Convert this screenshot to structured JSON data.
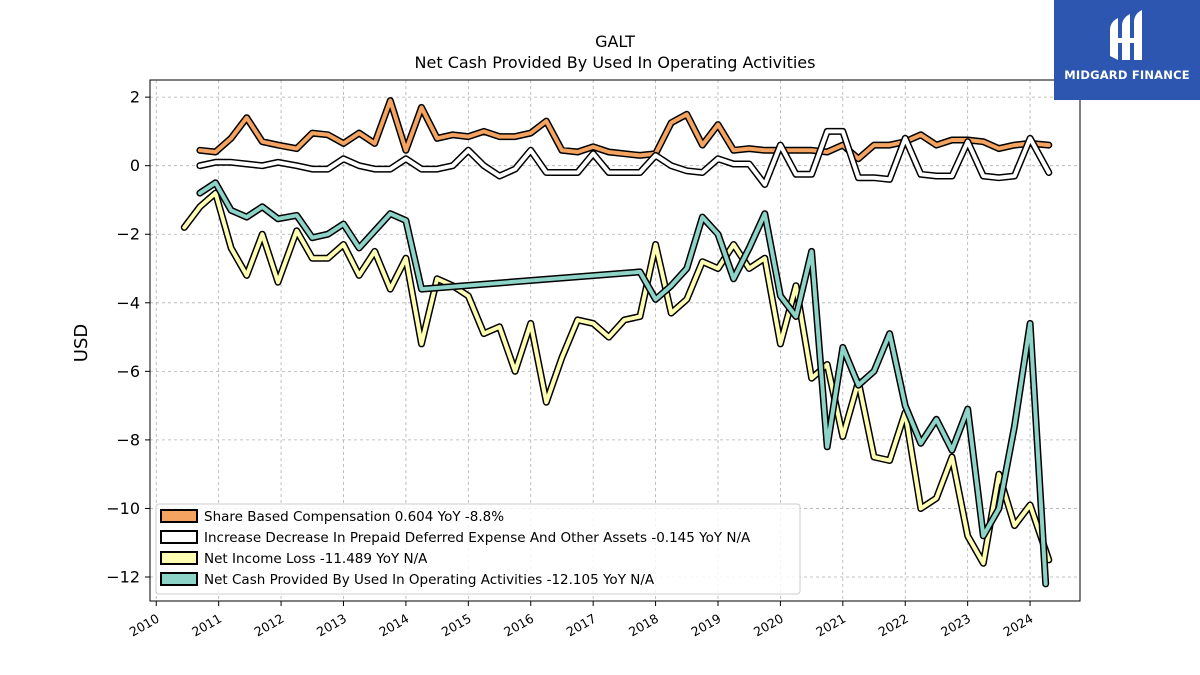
{
  "chart_data": {
    "type": "line",
    "title": "GALT",
    "subtitle": "Net Cash Provided By Used In Operating Activities",
    "xlabel": "",
    "ylabel": "USD",
    "xlim": [
      2009.9,
      2024.8
    ],
    "ylim": [
      -12.7,
      2.5
    ],
    "yticks": [
      2,
      0,
      -2,
      -4,
      -6,
      -8,
      -10,
      -12
    ],
    "ytick_labels": [
      "2",
      "0",
      "−2",
      "−4",
      "−6",
      "−8",
      "−10",
      "−12"
    ],
    "xticks": [
      2010,
      2011,
      2012,
      2013,
      2014,
      2015,
      2016,
      2017,
      2018,
      2019,
      2020,
      2021,
      2022,
      2023,
      2024
    ],
    "xtick_labels": [
      "2010",
      "2011",
      "2012",
      "2013",
      "2014",
      "2015",
      "2016",
      "2017",
      "2018",
      "2019",
      "2020",
      "2021",
      "2022",
      "2023",
      "2024"
    ],
    "grid": true,
    "legend_position": "lower-left",
    "series": [
      {
        "name": "Share Based Compensation",
        "legend": "Share Based Compensation  0.604 YoY -8.8%",
        "color": "#f4a460",
        "points": [
          [
            2010.7,
            0.45
          ],
          [
            2010.95,
            0.4
          ],
          [
            2011.2,
            0.8
          ],
          [
            2011.45,
            1.4
          ],
          [
            2011.7,
            0.7
          ],
          [
            2011.95,
            0.6
          ],
          [
            2012.25,
            0.5
          ],
          [
            2012.5,
            0.95
          ],
          [
            2012.75,
            0.9
          ],
          [
            2013.0,
            0.65
          ],
          [
            2013.25,
            0.95
          ],
          [
            2013.5,
            0.65
          ],
          [
            2013.75,
            1.9
          ],
          [
            2014.0,
            0.45
          ],
          [
            2014.25,
            1.7
          ],
          [
            2014.5,
            0.8
          ],
          [
            2014.75,
            0.9
          ],
          [
            2015.0,
            0.85
          ],
          [
            2015.25,
            1.0
          ],
          [
            2015.5,
            0.85
          ],
          [
            2015.75,
            0.85
          ],
          [
            2016.0,
            0.95
          ],
          [
            2016.25,
            1.3
          ],
          [
            2016.5,
            0.45
          ],
          [
            2016.75,
            0.4
          ],
          [
            2017.0,
            0.55
          ],
          [
            2017.25,
            0.4
          ],
          [
            2017.5,
            0.35
          ],
          [
            2017.75,
            0.3
          ],
          [
            2018.0,
            0.35
          ],
          [
            2018.25,
            1.25
          ],
          [
            2018.5,
            1.5
          ],
          [
            2018.75,
            0.6
          ],
          [
            2019.0,
            1.2
          ],
          [
            2019.25,
            0.45
          ],
          [
            2019.5,
            0.5
          ],
          [
            2019.75,
            0.45
          ],
          [
            2020.0,
            0.45
          ],
          [
            2020.25,
            0.45
          ],
          [
            2020.5,
            0.45
          ],
          [
            2020.75,
            0.4
          ],
          [
            2021.0,
            0.6
          ],
          [
            2021.25,
            0.2
          ],
          [
            2021.5,
            0.6
          ],
          [
            2021.75,
            0.6
          ],
          [
            2022.0,
            0.7
          ],
          [
            2022.25,
            0.9
          ],
          [
            2022.5,
            0.6
          ],
          [
            2022.75,
            0.75
          ],
          [
            2023.0,
            0.75
          ],
          [
            2023.25,
            0.7
          ],
          [
            2023.5,
            0.5
          ],
          [
            2023.75,
            0.6
          ],
          [
            2024.0,
            0.65
          ],
          [
            2024.3,
            0.6
          ]
        ]
      },
      {
        "name": "Increase Decrease In Prepaid Deferred Expense And Other Assets",
        "legend": "Increase Decrease In Prepaid Deferred Expense And Other Assets  -0.145 YoY N/A",
        "color": "#ffffff",
        "points": [
          [
            2010.7,
            0.0
          ],
          [
            2010.95,
            0.1
          ],
          [
            2011.2,
            0.1
          ],
          [
            2011.45,
            0.05
          ],
          [
            2011.7,
            0.0
          ],
          [
            2011.95,
            0.1
          ],
          [
            2012.25,
            0.0
          ],
          [
            2012.5,
            -0.1
          ],
          [
            2012.75,
            -0.1
          ],
          [
            2013.0,
            0.2
          ],
          [
            2013.25,
            0.0
          ],
          [
            2013.5,
            -0.1
          ],
          [
            2013.75,
            -0.1
          ],
          [
            2014.0,
            0.2
          ],
          [
            2014.25,
            -0.1
          ],
          [
            2014.5,
            -0.1
          ],
          [
            2014.75,
            0.0
          ],
          [
            2015.0,
            0.45
          ],
          [
            2015.25,
            0.0
          ],
          [
            2015.5,
            -0.3
          ],
          [
            2015.75,
            -0.1
          ],
          [
            2016.0,
            0.45
          ],
          [
            2016.25,
            -0.2
          ],
          [
            2016.5,
            -0.2
          ],
          [
            2016.75,
            -0.2
          ],
          [
            2017.0,
            0.35
          ],
          [
            2017.25,
            -0.2
          ],
          [
            2017.5,
            -0.2
          ],
          [
            2017.75,
            -0.2
          ],
          [
            2018.0,
            0.3
          ],
          [
            2018.25,
            0.0
          ],
          [
            2018.5,
            -0.15
          ],
          [
            2018.75,
            -0.2
          ],
          [
            2019.0,
            0.2
          ],
          [
            2019.25,
            0.05
          ],
          [
            2019.5,
            0.05
          ],
          [
            2019.75,
            -0.55
          ],
          [
            2020.0,
            0.6
          ],
          [
            2020.25,
            -0.25
          ],
          [
            2020.5,
            -0.25
          ],
          [
            2020.75,
            1.0
          ],
          [
            2021.0,
            1.0
          ],
          [
            2021.25,
            -0.35
          ],
          [
            2021.5,
            -0.35
          ],
          [
            2021.75,
            -0.4
          ],
          [
            2022.0,
            0.8
          ],
          [
            2022.25,
            -0.25
          ],
          [
            2022.5,
            -0.3
          ],
          [
            2022.75,
            -0.3
          ],
          [
            2023.0,
            0.7
          ],
          [
            2023.25,
            -0.3
          ],
          [
            2023.5,
            -0.35
          ],
          [
            2023.75,
            -0.3
          ],
          [
            2024.0,
            0.8
          ],
          [
            2024.3,
            -0.2
          ]
        ]
      },
      {
        "name": "Net Income Loss",
        "legend": "Net Income Loss  -11.489 YoY N/A",
        "color": "#ffffb3",
        "points": [
          [
            2010.45,
            -1.8
          ],
          [
            2010.7,
            -1.2
          ],
          [
            2010.95,
            -0.8
          ],
          [
            2011.2,
            -2.4
          ],
          [
            2011.45,
            -3.2
          ],
          [
            2011.7,
            -2.0
          ],
          [
            2011.95,
            -3.4
          ],
          [
            2012.25,
            -1.9
          ],
          [
            2012.5,
            -2.7
          ],
          [
            2012.75,
            -2.7
          ],
          [
            2013.0,
            -2.3
          ],
          [
            2013.25,
            -3.2
          ],
          [
            2013.5,
            -2.5
          ],
          [
            2013.75,
            -3.6
          ],
          [
            2014.0,
            -2.7
          ],
          [
            2014.25,
            -5.2
          ],
          [
            2014.5,
            -3.3
          ],
          [
            2014.75,
            -3.5
          ],
          [
            2015.0,
            -3.8
          ],
          [
            2015.25,
            -4.9
          ],
          [
            2015.5,
            -4.7
          ],
          [
            2015.75,
            -6.0
          ],
          [
            2016.0,
            -4.6
          ],
          [
            2016.25,
            -6.9
          ],
          [
            2016.5,
            -5.6
          ],
          [
            2016.75,
            -4.5
          ],
          [
            2017.0,
            -4.6
          ],
          [
            2017.25,
            -5.0
          ],
          [
            2017.5,
            -4.5
          ],
          [
            2017.75,
            -4.4
          ],
          [
            2018.0,
            -2.3
          ],
          [
            2018.25,
            -4.3
          ],
          [
            2018.5,
            -3.9
          ],
          [
            2018.75,
            -2.8
          ],
          [
            2019.0,
            -3.0
          ],
          [
            2019.25,
            -2.3
          ],
          [
            2019.5,
            -3.0
          ],
          [
            2019.75,
            -2.7
          ],
          [
            2020.0,
            -5.2
          ],
          [
            2020.25,
            -3.5
          ],
          [
            2020.5,
            -6.2
          ],
          [
            2020.75,
            -5.8
          ],
          [
            2021.0,
            -7.9
          ],
          [
            2021.25,
            -6.3
          ],
          [
            2021.5,
            -8.5
          ],
          [
            2021.75,
            -8.6
          ],
          [
            2022.0,
            -7.2
          ],
          [
            2022.25,
            -10.0
          ],
          [
            2022.5,
            -9.7
          ],
          [
            2022.75,
            -8.5
          ],
          [
            2023.0,
            -10.8
          ],
          [
            2023.25,
            -11.6
          ],
          [
            2023.5,
            -9.0
          ],
          [
            2023.75,
            -10.5
          ],
          [
            2024.0,
            -9.9
          ],
          [
            2024.3,
            -11.5
          ]
        ]
      },
      {
        "name": "Net Cash Provided By Used In Operating Activities",
        "legend": "Net Cash Provided By Used In Operating Activities  -12.105 YoY N/A",
        "color": "#8dd3c7",
        "points": [
          [
            2010.7,
            -0.8
          ],
          [
            2010.95,
            -0.5
          ],
          [
            2011.2,
            -1.3
          ],
          [
            2011.45,
            -1.5
          ],
          [
            2011.7,
            -1.2
          ],
          [
            2011.95,
            -1.55
          ],
          [
            2012.25,
            -1.45
          ],
          [
            2012.5,
            -2.1
          ],
          [
            2012.75,
            -2.0
          ],
          [
            2013.0,
            -1.7
          ],
          [
            2013.25,
            -2.4
          ],
          [
            2013.5,
            -1.9
          ],
          [
            2013.75,
            -1.4
          ],
          [
            2014.0,
            -1.6
          ],
          [
            2014.25,
            -3.6
          ],
          [
            2017.75,
            -3.1
          ],
          [
            2018.0,
            -3.9
          ],
          [
            2018.25,
            -3.5
          ],
          [
            2018.5,
            -3.0
          ],
          [
            2018.75,
            -1.5
          ],
          [
            2019.0,
            -2.0
          ],
          [
            2019.25,
            -3.3
          ],
          [
            2019.5,
            -2.4
          ],
          [
            2019.75,
            -1.4
          ],
          [
            2020.0,
            -3.8
          ],
          [
            2020.25,
            -4.4
          ],
          [
            2020.5,
            -2.5
          ],
          [
            2020.75,
            -8.2
          ],
          [
            2021.0,
            -5.3
          ],
          [
            2021.25,
            -6.4
          ],
          [
            2021.5,
            -6.0
          ],
          [
            2021.75,
            -4.9
          ],
          [
            2022.0,
            -7.0
          ],
          [
            2022.25,
            -8.1
          ],
          [
            2022.5,
            -7.4
          ],
          [
            2022.75,
            -8.3
          ],
          [
            2023.0,
            -7.1
          ],
          [
            2023.25,
            -10.8
          ],
          [
            2023.5,
            -10.0
          ],
          [
            2023.75,
            -7.6
          ],
          [
            2024.0,
            -4.6
          ],
          [
            2024.25,
            -12.2
          ]
        ]
      }
    ]
  },
  "logo": {
    "text": "MIDGARD FINANCE",
    "bg_color": "#2c56b0"
  }
}
